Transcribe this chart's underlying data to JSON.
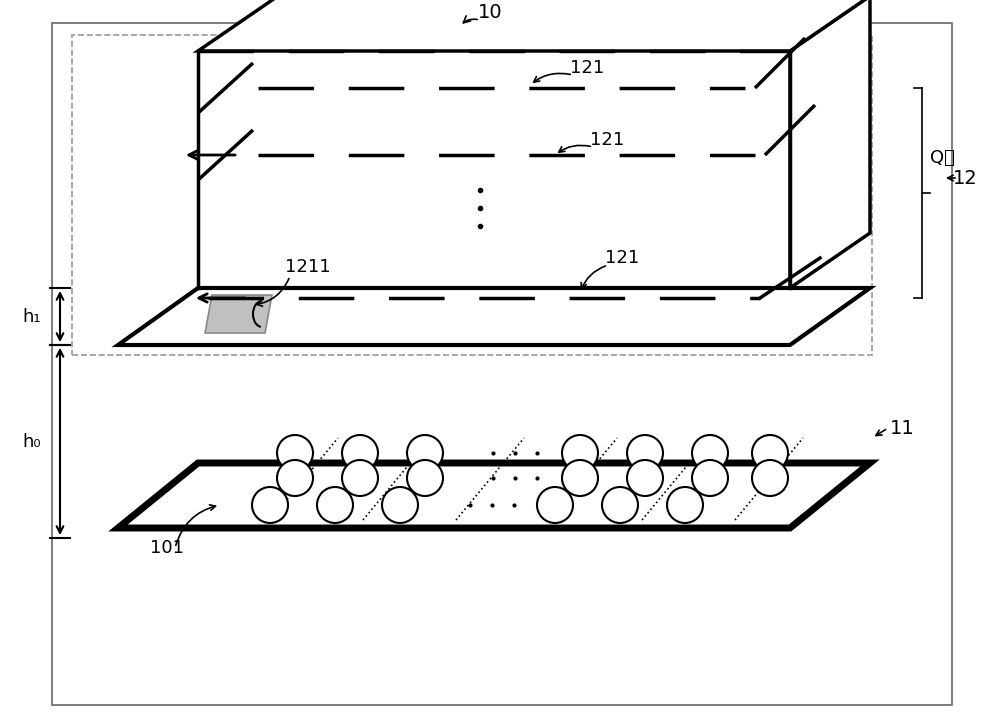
{
  "fig_width": 10.0,
  "fig_height": 7.23,
  "bg_color": "#ffffff",
  "label_10": "10",
  "label_12": "12",
  "label_11": "11",
  "label_121_top": "121",
  "label_121_mid": "121",
  "label_121_bot": "121",
  "label_1211": "1211",
  "label_101": "101",
  "label_Q": "Q层",
  "label_h1": "h₁",
  "label_h0": "h₀"
}
